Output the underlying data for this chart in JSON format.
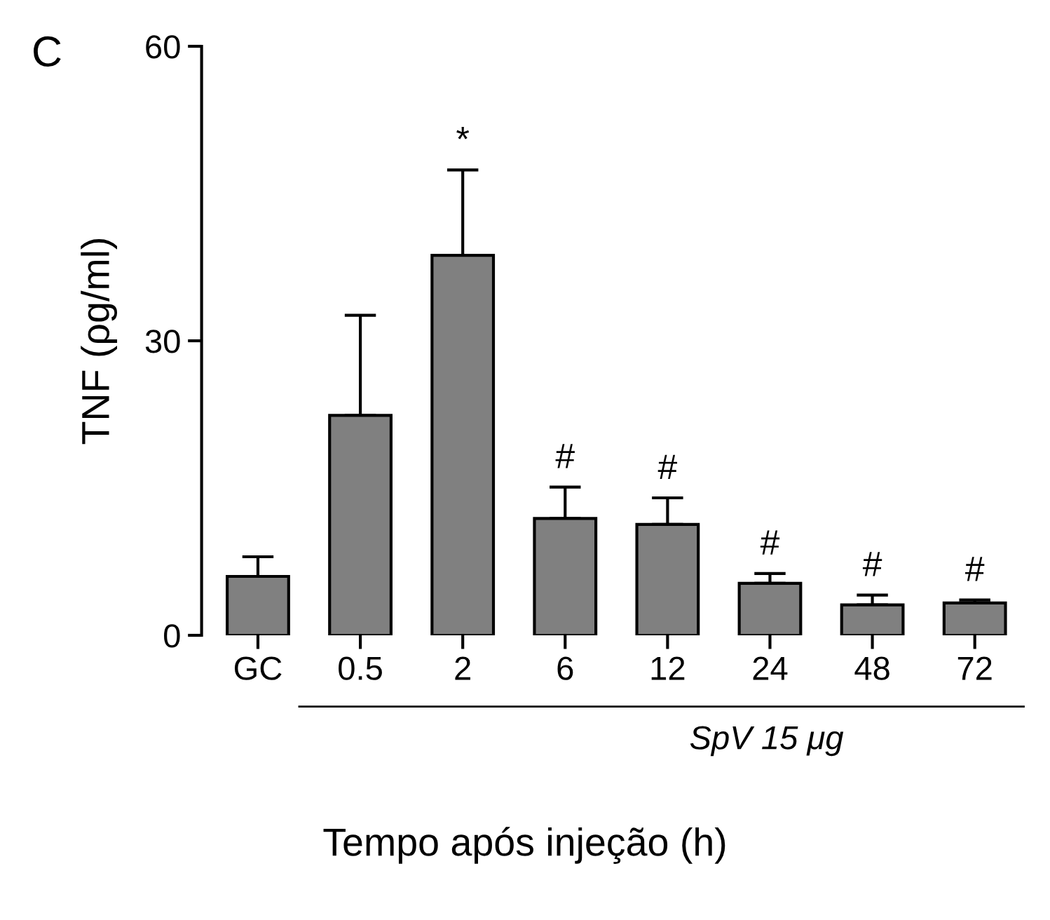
{
  "chart_data": {
    "type": "bar",
    "ylabel": "TNF (ρg/ml)",
    "xlabel": "Tempo após injeção (h)",
    "categories": [
      "GC",
      "0.5",
      "2",
      "6",
      "12",
      "24",
      "48",
      "72"
    ],
    "values": [
      6.0,
      22.4,
      38.7,
      11.9,
      11.3,
      5.3,
      3.1,
      3.3
    ],
    "errors": [
      [
        6.0,
        8.0
      ],
      [
        22.4,
        32.6
      ],
      [
        38.7,
        47.4
      ],
      [
        11.9,
        15.1
      ],
      [
        11.3,
        14.0
      ],
      [
        5.3,
        6.3
      ],
      [
        3.1,
        4.1
      ],
      [
        3.3,
        3.6
      ]
    ],
    "color": "#808080",
    "ylim": [
      0,
      60
    ],
    "yticks": [
      0,
      30,
      60
    ],
    "grid": false,
    "annotations": [
      "C",
      "SpV 15 μg",
      {
        "text": "*",
        "x": "2",
        "y": 47.4
      },
      {
        "text": "#",
        "x": "6",
        "y": 15.1
      },
      {
        "text": "#",
        "x": "12",
        "y": 14.0
      },
      {
        "text": "#",
        "x": "24",
        "y": 6.3
      },
      {
        "text": "#",
        "x": "48",
        "y": 4.1
      },
      {
        "text": "#",
        "x": "72",
        "y": 3.6
      }
    ]
  }
}
